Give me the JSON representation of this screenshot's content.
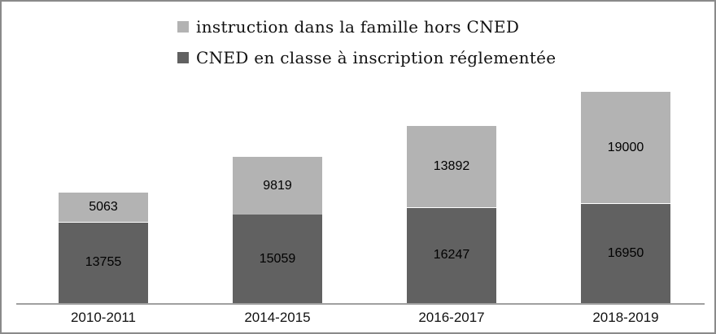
{
  "chart_data": {
    "type": "bar",
    "stacked": true,
    "title": "",
    "xlabel": "",
    "ylabel": "",
    "categories": [
      "2010-2011",
      "2014-2015",
      "2016-2017",
      "2018-2019"
    ],
    "series": [
      {
        "name": "CNED en classe à inscription réglementée",
        "color": "#616161",
        "values": [
          13755,
          15059,
          16247,
          16950
        ]
      },
      {
        "name": "instruction dans la famille hors CNED",
        "color": "#b3b3b3",
        "values": [
          5063,
          9819,
          13892,
          19000
        ]
      }
    ],
    "legend": [
      {
        "label": "instruction dans la famille hors CNED",
        "color": "#b3b3b3"
      },
      {
        "label": "CNED en classe à inscription réglementée",
        "color": "#616161"
      }
    ],
    "legend_position": "top-center",
    "data_labels": true,
    "grid": false,
    "y_axis_visible": false,
    "ylim": [
      0,
      38000
    ],
    "axis_line_color": "#a0a0a0",
    "frame_border_color": "#8a8a8a",
    "label_color": "#000000"
  }
}
